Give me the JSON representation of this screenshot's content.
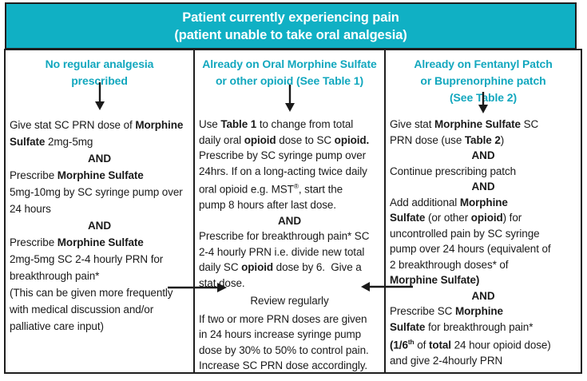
{
  "title": {
    "line1": "Patient currently experiencing pain",
    "line2": "(patient unable to take oral analgesia)"
  },
  "colors": {
    "banner_teal": "#10b0c4",
    "heading_teal": "#12a7be",
    "border": "#1e1e1e",
    "body_text": "#1a1a1a",
    "banner_text": "#ffffff"
  },
  "icons": {
    "down_arrow": "↓",
    "flow_arrow_left_to_center": "→",
    "flow_arrow_right_to_center": "←"
  },
  "columns": [
    {
      "heading_lines": [
        "No regular analgesia",
        "prescribed"
      ],
      "p1": [
        {
          "t": "Give stat SC PRN dose of "
        },
        {
          "t": "Morphine",
          "b": true
        },
        {
          "br": true
        },
        {
          "t": "Sulfate",
          "b": true
        },
        {
          "t": " 2mg-5mg"
        }
      ],
      "and1": "AND",
      "p2": [
        {
          "t": "Prescribe "
        },
        {
          "t": "Morphine Sulfate",
          "b": true
        },
        {
          "br": true
        },
        {
          "t": "5mg-10mg by SC syringe pump over"
        },
        {
          "br": true
        },
        {
          "t": "24 hours"
        }
      ],
      "and2": "AND",
      "p3": [
        {
          "t": "Prescribe "
        },
        {
          "t": "Morphine Sulfate",
          "b": true
        },
        {
          "br": true
        },
        {
          "t": "2mg-5mg SC 2-4 hourly PRN for"
        },
        {
          "br": true
        },
        {
          "t": "breakthrough pain*"
        }
      ],
      "p4": [
        {
          "t": "(This can be given more frequently"
        },
        {
          "br": true
        },
        {
          "t": "with medical discussion and/or"
        },
        {
          "br": true
        },
        {
          "t": "palliative care input)"
        }
      ]
    },
    {
      "heading_lines": [
        "Already on Oral Morphine Sulfate",
        "or other opioid (See Table 1)"
      ],
      "p1": [
        {
          "t": "Use "
        },
        {
          "t": "Table 1",
          "b": true
        },
        {
          "t": " to change from total"
        },
        {
          "br": true
        },
        {
          "t": "daily oral "
        },
        {
          "t": "opioid",
          "b": true
        },
        {
          "t": " dose to SC "
        },
        {
          "t": "opioid.",
          "b": true
        },
        {
          "br": true
        },
        {
          "t": "Prescribe by SC syringe pump over"
        },
        {
          "br": true
        },
        {
          "t": "24hrs. If on a long-acting twice daily"
        },
        {
          "br": true
        },
        {
          "t": "oral opioid e.g. MST"
        },
        {
          "t": "®",
          "sup": true
        },
        {
          "t": ", start the"
        },
        {
          "br": true
        },
        {
          "t": "pump 8 hours after last dose."
        }
      ],
      "and1": "AND",
      "p2": [
        {
          "t": "Prescribe for breakthrough pain* SC"
        },
        {
          "br": true
        },
        {
          "t": "2-4 hourly PRN i.e. divide new total"
        },
        {
          "br": true
        },
        {
          "t": "daily SC "
        },
        {
          "t": "opioid",
          "b": true
        },
        {
          "t": " dose by 6.  Give a"
        },
        {
          "br": true
        },
        {
          "t": "stat dose."
        }
      ],
      "review": "Review regularly",
      "p3": [
        {
          "t": "If two or more PRN doses are given"
        },
        {
          "br": true
        },
        {
          "t": "in 24 hours increase syringe pump"
        },
        {
          "br": true
        },
        {
          "t": "dose by 30% to 50% to control pain."
        },
        {
          "br": true
        },
        {
          "t": "Increase SC PRN dose accordingly."
        }
      ]
    },
    {
      "heading_lines": [
        "Already on Fentanyl Patch",
        "or Buprenorphine patch",
        "(See Table 2)"
      ],
      "p1": [
        {
          "t": "Give stat "
        },
        {
          "t": "Morphine Sulfate",
          "b": true
        },
        {
          "t": " SC"
        },
        {
          "br": true
        },
        {
          "t": "PRN dose (use "
        },
        {
          "t": "Table 2",
          "b": true
        },
        {
          "t": ")"
        }
      ],
      "and1": "AND",
      "p2": [
        {
          "t": "Continue prescribing patch"
        }
      ],
      "and2": "AND",
      "p3": [
        {
          "t": "Add additional "
        },
        {
          "t": "Morphine",
          "b": true
        },
        {
          "br": true
        },
        {
          "t": "Sulfate",
          "b": true
        },
        {
          "t": " (or other "
        },
        {
          "t": "opioid",
          "b": true
        },
        {
          "t": ") for"
        },
        {
          "br": true
        },
        {
          "t": "uncontrolled pain by SC syringe"
        },
        {
          "br": true
        },
        {
          "t": "pump over 24 hours (equivalent of"
        },
        {
          "br": true
        },
        {
          "t": "2 breakthrough doses* of"
        },
        {
          "br": true
        },
        {
          "t": "Morphine Sulfate)",
          "b": true
        }
      ],
      "and3": "AND",
      "p4": [
        {
          "t": "Prescribe SC "
        },
        {
          "t": "Morphine",
          "b": true
        },
        {
          "br": true
        },
        {
          "t": "Sulfate",
          "b": true
        },
        {
          "t": " for breakthrough pain*"
        },
        {
          "br": true
        },
        {
          "t": "(1/6",
          "b": true
        },
        {
          "t": "th",
          "b": true,
          "sup": true
        },
        {
          "t": " of "
        },
        {
          "t": "total",
          "b": true
        },
        {
          "t": " 24 hour opioid dose)"
        },
        {
          "br": true
        },
        {
          "t": "and give 2-4hourly PRN"
        }
      ]
    }
  ]
}
